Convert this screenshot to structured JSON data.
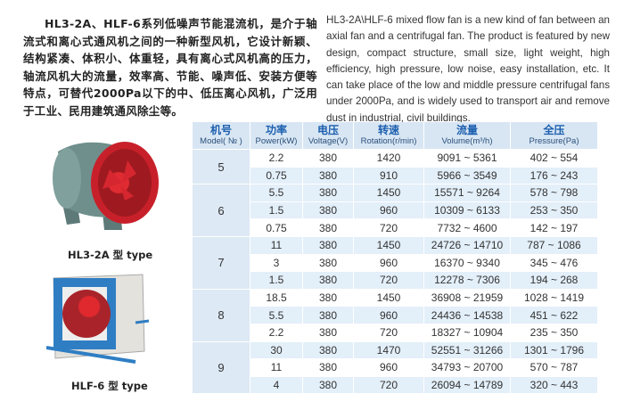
{
  "intro_cn": "HL3-2A、HLF-6系列低噪声节能混流机，是介于轴 流式和离心式通风机之间的一种新型风机，它设计新颖、结构紧凑、体积小、体重轻，具有离心式风机高的压力，轴流风机大的流量，效率高、节能、噪声低、安装方便等特点，可替代2000Pa以下的中、低压离心风机，广泛用于工业、民用建筑通风除尘等。",
  "intro_en": "HL3-2A\\HLF-6 mixed flow fan is a new kind of fan between an axial fan and a centrifugal fan. The product is featured by new design, compact structure, small size, light weight, high efficiency, high pressure, low noise, easy installation, etc. It can take place of the low and middle pressure centrifugal fans under 2000Pa, and is widely used to transport air and remove dust in industrial, civil buildings.",
  "products": [
    {
      "caption": "HL3-2A 型 type",
      "image": "axial-duct-fan-red-impeller"
    },
    {
      "caption": "HLF-6 型 type",
      "image": "box-fan-blue-frame"
    }
  ],
  "table": {
    "headers": [
      {
        "cn": "机号",
        "en": "Model( № )"
      },
      {
        "cn": "功率",
        "en": "Power(kW)"
      },
      {
        "cn": "电压",
        "en": "Voltage(V)"
      },
      {
        "cn": "转速",
        "en": "Rotation(r/min)"
      },
      {
        "cn": "流量",
        "en": "Volume(m³/h)"
      },
      {
        "cn": "全压",
        "en": "Pressure(Pa)"
      }
    ],
    "groups": [
      {
        "model": "5",
        "rows": [
          [
            "2.2",
            "380",
            "1420",
            "9091 ~ 5361",
            "402 ~ 554"
          ],
          [
            "0.75",
            "380",
            "910",
            "5966 ~ 3549",
            "176 ~ 243"
          ]
        ]
      },
      {
        "model": "6",
        "rows": [
          [
            "5.5",
            "380",
            "1450",
            "15571 ~ 9264",
            "578 ~ 798"
          ],
          [
            "1.5",
            "380",
            "960",
            "10309 ~ 6133",
            "253 ~ 350"
          ],
          [
            "0.75",
            "380",
            "720",
            "7732 ~ 4600",
            "142 ~ 197"
          ]
        ]
      },
      {
        "model": "7",
        "rows": [
          [
            "11",
            "380",
            "1450",
            "24726 ~ 14710",
            "787 ~ 1086"
          ],
          [
            "3",
            "380",
            "960",
            "16370 ~ 9340",
            "345 ~ 476"
          ],
          [
            "1.5",
            "380",
            "720",
            "12278 ~ 7306",
            "194 ~ 268"
          ]
        ]
      },
      {
        "model": "8",
        "rows": [
          [
            "18.5",
            "380",
            "1450",
            "36908 ~ 21959",
            "1028 ~ 1419"
          ],
          [
            "5.5",
            "380",
            "960",
            "24436 ~ 14538",
            "451 ~ 622"
          ],
          [
            "2.2",
            "380",
            "720",
            "18327 ~ 10904",
            "235 ~ 350"
          ]
        ]
      },
      {
        "model": "9",
        "rows": [
          [
            "30",
            "380",
            "1470",
            "52551 ~ 31266",
            "1301 ~ 1796"
          ],
          [
            "11",
            "380",
            "960",
            "34793 ~ 20700",
            "570 ~ 787"
          ],
          [
            "4",
            "380",
            "720",
            "26094 ~ 14789",
            "320 ~ 443"
          ]
        ]
      }
    ]
  },
  "colors": {
    "header_bg": "#d8e6f4",
    "header_text": "#1c5fae",
    "row_alt": "#e3eff9",
    "model_bg": "#dde9f5"
  }
}
